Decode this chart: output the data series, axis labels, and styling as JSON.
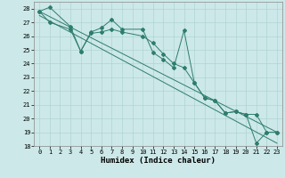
{
  "xlabel": "Humidex (Indice chaleur)",
  "ylabel": "",
  "bg_color": "#cce8e8",
  "line_color": "#2e7d6e",
  "xlim": [
    -0.5,
    23.5
  ],
  "ylim": [
    18,
    28.5
  ],
  "yticks": [
    18,
    19,
    20,
    21,
    22,
    23,
    24,
    25,
    26,
    27,
    28
  ],
  "xticks": [
    0,
    1,
    2,
    3,
    4,
    5,
    6,
    7,
    8,
    9,
    10,
    11,
    12,
    13,
    14,
    15,
    16,
    17,
    18,
    19,
    20,
    21,
    22,
    23
  ],
  "series1_x": [
    0,
    1,
    3,
    4,
    5,
    6,
    7,
    8,
    10,
    11,
    12,
    13,
    14,
    15,
    16,
    17,
    18,
    19,
    20,
    21,
    22,
    23
  ],
  "series1_y": [
    27.8,
    28.1,
    26.7,
    24.9,
    26.3,
    26.6,
    27.2,
    26.5,
    26.5,
    24.8,
    24.3,
    23.7,
    26.4,
    22.6,
    21.5,
    21.3,
    20.4,
    20.5,
    20.3,
    18.2,
    19.0,
    19.0
  ],
  "series2_x": [
    0,
    1,
    3,
    4,
    5,
    6,
    7,
    8,
    10,
    11,
    12,
    13,
    14,
    15,
    16,
    17,
    18,
    19,
    20,
    21,
    22,
    23
  ],
  "series2_y": [
    27.8,
    27.0,
    26.5,
    24.9,
    26.2,
    26.3,
    26.5,
    26.3,
    26.0,
    25.5,
    24.7,
    24.0,
    23.7,
    22.6,
    21.5,
    21.3,
    20.4,
    20.5,
    20.3,
    20.3,
    19.0,
    19.0
  ],
  "trend1_x": [
    0,
    23
  ],
  "trend1_y": [
    27.8,
    19.0
  ],
  "trend2_x": [
    0,
    23
  ],
  "trend2_y": [
    27.5,
    18.2
  ]
}
